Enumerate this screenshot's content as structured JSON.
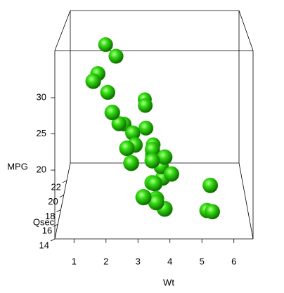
{
  "chart_data": {
    "type": "scatter3d",
    "xlabel": "Wt",
    "ylabel": "Qsec",
    "zlabel": "MPG",
    "x": [
      2.62,
      2.875,
      2.32,
      3.215,
      3.44,
      3.46,
      3.57,
      3.19,
      3.15,
      3.44,
      3.44,
      4.07,
      3.73,
      3.78,
      5.25,
      5.424,
      5.345,
      2.2,
      1.615,
      1.835,
      2.465,
      3.52,
      3.435,
      3.84,
      3.845,
      1.935,
      2.14,
      1.513,
      3.17,
      2.77,
      3.57,
      2.78
    ],
    "y": [
      16.46,
      17.02,
      18.61,
      19.44,
      17.02,
      20.22,
      15.84,
      20.0,
      22.9,
      18.3,
      18.9,
      17.4,
      17.6,
      18.0,
      17.98,
      17.82,
      17.42,
      19.47,
      18.52,
      19.9,
      20.01,
      16.87,
      17.3,
      15.41,
      17.05,
      18.9,
      16.7,
      16.9,
      14.5,
      15.5,
      14.6,
      18.6
    ],
    "z": [
      21.0,
      21.0,
      22.8,
      21.4,
      18.7,
      18.1,
      14.3,
      24.4,
      22.8,
      19.2,
      17.8,
      16.4,
      17.3,
      15.2,
      10.4,
      10.4,
      14.7,
      32.4,
      30.4,
      33.9,
      21.5,
      15.5,
      15.2,
      13.3,
      19.2,
      27.3,
      26.0,
      30.4,
      15.8,
      19.7,
      15.0,
      21.4
    ],
    "xlim": [
      0.4,
      6.6
    ],
    "ylim": [
      14,
      24.4
    ],
    "zlim": [
      10.5,
      36.5
    ],
    "xticks": [
      1,
      2,
      3,
      4,
      5,
      6
    ],
    "yticks": [
      14,
      16,
      18,
      20,
      22
    ],
    "zticks": [
      20,
      25,
      30
    ],
    "color": "#22cc00"
  }
}
